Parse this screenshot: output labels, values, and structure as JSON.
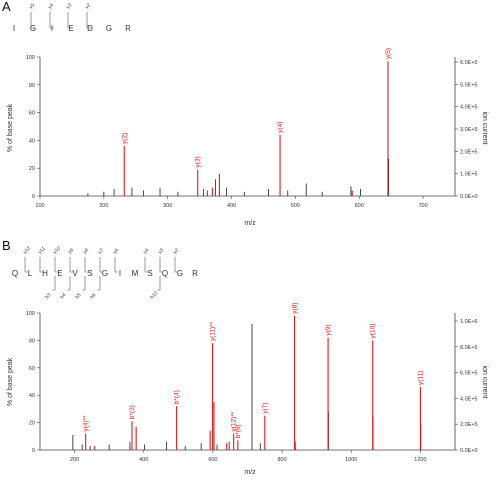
{
  "chart_data": [
    {
      "panel": "A",
      "type": "bar",
      "sequence": [
        "I",
        "G",
        "I",
        "E",
        "D",
        "G",
        "R"
      ],
      "fragment_labels": [
        "y5",
        "y4",
        "y3",
        "y2"
      ],
      "xlabel": "m/z",
      "ylabel": "% of base peak",
      "y2label": "ion current",
      "xlim": [
        100,
        750
      ],
      "ylim": [
        0,
        100
      ],
      "x_ticks": [
        100,
        200,
        300,
        400,
        500,
        600,
        700
      ],
      "y_ticks": [
        0,
        20,
        40,
        60,
        80,
        100
      ],
      "y2_ticks": [
        "0.0E+0",
        "1.0E+5",
        "2.0E+5",
        "3.0E+5",
        "4.0E+5",
        "5.0E+5",
        "6.0E+5"
      ],
      "series": [
        {
          "name": "matched",
          "color": "#e41a1c",
          "peaks": [
            {
              "mz": 232,
              "pct": 36,
              "label": "y(2)"
            },
            {
              "mz": 347,
              "pct": 19,
              "label": "y(3)"
            },
            {
              "mz": 476,
              "pct": 44,
              "label": "y(4)"
            },
            {
              "mz": 645,
              "pct": 97,
              "label": "y(5)"
            },
            {
              "mz": 370,
              "pct": 6
            },
            {
              "mz": 381,
              "pct": 16
            },
            {
              "mz": 589,
              "pct": 4
            }
          ]
        },
        {
          "name": "unmatched",
          "color": "#333333",
          "peaks": [
            {
              "mz": 175,
              "pct": 2
            },
            {
              "mz": 200,
              "pct": 3
            },
            {
              "mz": 216,
              "pct": 5
            },
            {
              "mz": 244,
              "pct": 6
            },
            {
              "mz": 262,
              "pct": 4
            },
            {
              "mz": 288,
              "pct": 6
            },
            {
              "mz": 316,
              "pct": 3
            },
            {
              "mz": 356,
              "pct": 5
            },
            {
              "mz": 362,
              "pct": 4
            },
            {
              "mz": 375,
              "pct": 12
            },
            {
              "mz": 392,
              "pct": 6
            },
            {
              "mz": 420,
              "pct": 3
            },
            {
              "mz": 458,
              "pct": 5
            },
            {
              "mz": 488,
              "pct": 4
            },
            {
              "mz": 517,
              "pct": 9
            },
            {
              "mz": 542,
              "pct": 3
            },
            {
              "mz": 587,
              "pct": 7
            },
            {
              "mz": 602,
              "pct": 5
            },
            {
              "mz": 646,
              "pct": 27
            }
          ]
        }
      ]
    },
    {
      "panel": "B",
      "type": "bar",
      "sequence": [
        "Q",
        "L",
        "H",
        "E",
        "V",
        "S",
        "G",
        "I",
        "M",
        "S",
        "Q",
        "G",
        "R"
      ],
      "fragment_labels": [
        "y12",
        "y11",
        "y10",
        "y9",
        "y8",
        "y7",
        "y6",
        "y4",
        "y3",
        "y2",
        "b3",
        "b4",
        "b5",
        "b6",
        "b10"
      ],
      "xlabel": "m/z",
      "ylabel": "% of base peak",
      "y2label": "ion current",
      "xlim": [
        100,
        1300
      ],
      "ylim": [
        0,
        100
      ],
      "x_ticks": [
        200,
        400,
        600,
        800,
        1000,
        1200
      ],
      "y_ticks": [
        0,
        20,
        40,
        60,
        80,
        100
      ],
      "y2_ticks": [
        "0.0E+0",
        "2.0E+5",
        "4.0E+5",
        "6.0E+5",
        "8.0E+5",
        "1.0E+6"
      ],
      "series": [
        {
          "name": "matched",
          "color": "#e41a1c",
          "peaks": [
            {
              "mz": 232,
              "pct": 12,
              "label": "y(4)**"
            },
            {
              "mz": 366,
              "pct": 21,
              "label": "b*(3)"
            },
            {
              "mz": 495,
              "pct": 32,
              "label": "b*(4)"
            },
            {
              "mz": 599,
              "pct": 78,
              "label": "y(11)**"
            },
            {
              "mz": 660,
              "pct": 12,
              "label": "y(12)**"
            },
            {
              "mz": 672,
              "pct": 7,
              "label": "b*(6)"
            },
            {
              "mz": 750,
              "pct": 25,
              "label": "y(7)"
            },
            {
              "mz": 836,
              "pct": 98,
              "label": "y(8)"
            },
            {
              "mz": 933,
              "pct": 82,
              "label": "y(9)"
            },
            {
              "mz": 1062,
              "pct": 80,
              "label": "y(10)"
            },
            {
              "mz": 1200,
              "pct": 46,
              "label": "y(11)"
            },
            {
              "mz": 258,
              "pct": 3
            },
            {
              "mz": 378,
              "pct": 17
            },
            {
              "mz": 592,
              "pct": 14
            },
            {
              "mz": 603,
              "pct": 35
            },
            {
              "mz": 640,
              "pct": 5
            }
          ]
        },
        {
          "name": "unmatched",
          "color": "#333333",
          "peaks": [
            {
              "mz": 195,
              "pct": 11
            },
            {
              "mz": 222,
              "pct": 4
            },
            {
              "mz": 245,
              "pct": 3
            },
            {
              "mz": 300,
              "pct": 4
            },
            {
              "mz": 360,
              "pct": 6
            },
            {
              "mz": 402,
              "pct": 4
            },
            {
              "mz": 466,
              "pct": 6
            },
            {
              "mz": 520,
              "pct": 3
            },
            {
              "mz": 566,
              "pct": 5
            },
            {
              "mz": 612,
              "pct": 4
            },
            {
              "mz": 647,
              "pct": 6
            },
            {
              "mz": 713,
              "pct": 92
            },
            {
              "mz": 737,
              "pct": 5
            },
            {
              "mz": 838,
              "pct": 6
            },
            {
              "mz": 934,
              "pct": 28
            },
            {
              "mz": 1063,
              "pct": 24
            },
            {
              "mz": 1201,
              "pct": 19
            }
          ]
        }
      ]
    }
  ]
}
